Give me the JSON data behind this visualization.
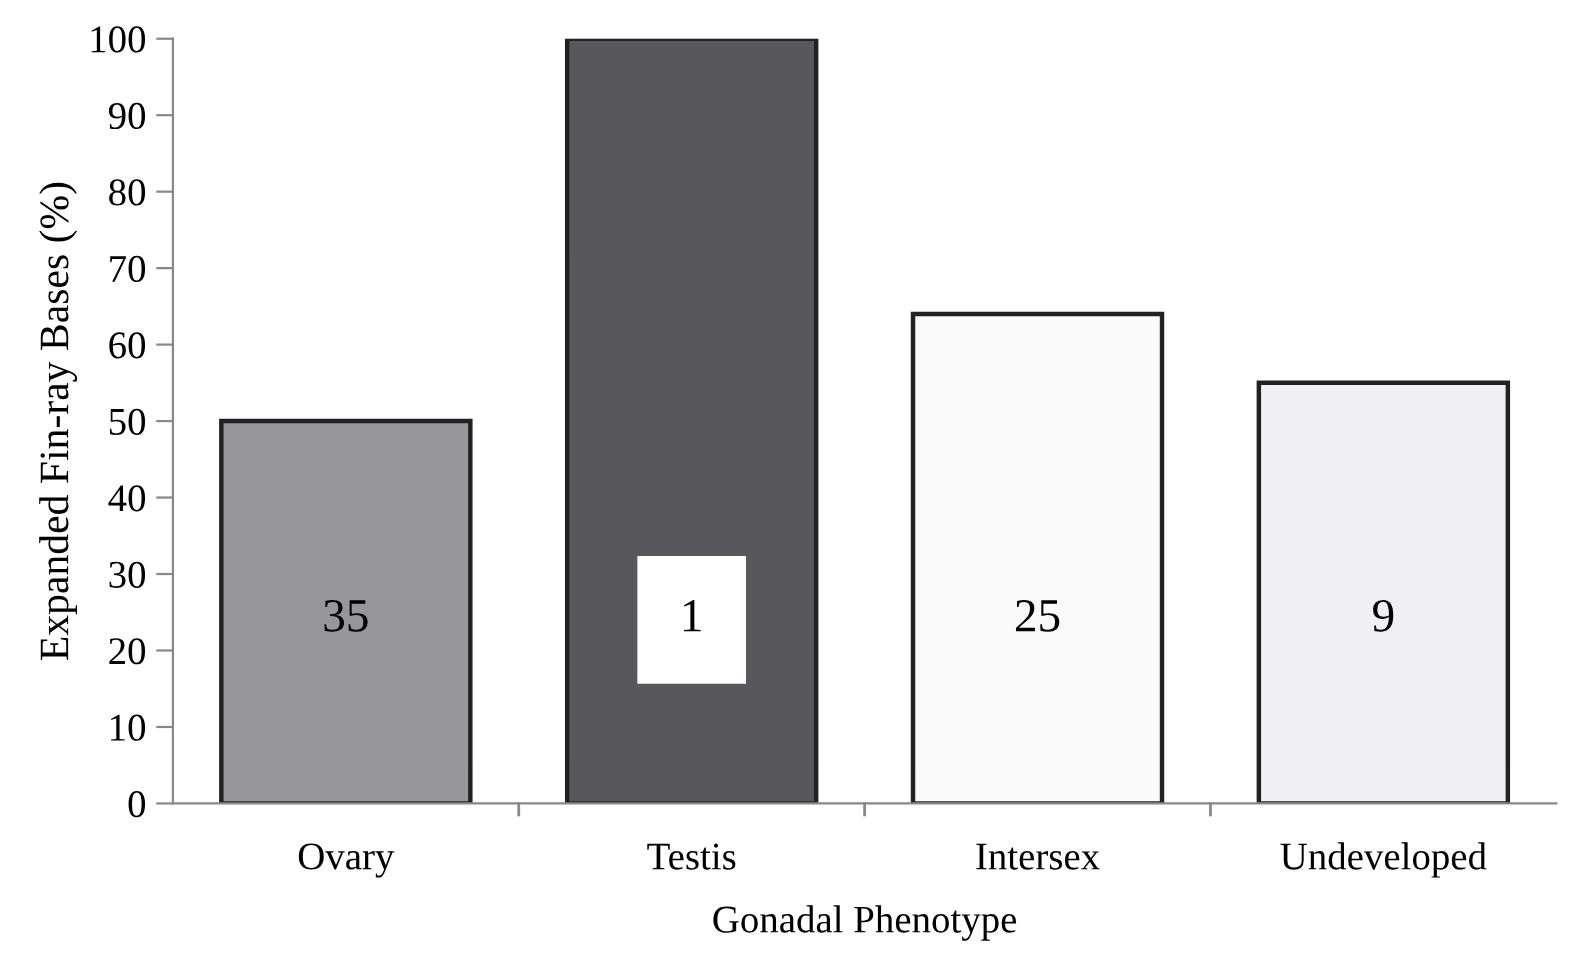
{
  "chart_data": {
    "type": "bar",
    "xlabel": "Gonadal Phenotype",
    "ylabel": "Expanded Fin-ray Bases (%)",
    "categories": [
      "Ovary",
      "Testis",
      "Intersex",
      "Undeveloped"
    ],
    "values": [
      50,
      100,
      64,
      55
    ],
    "colors": [
      "#97979b",
      "#58585c",
      "#fafafa",
      "#f0f0f2"
    ],
    "ylim": [
      0,
      100
    ],
    "yticks": [
      0,
      10,
      20,
      30,
      40,
      50,
      60,
      70,
      80,
      90,
      100
    ],
    "grid": false,
    "annotations": [
      "35",
      "1",
      "25",
      "9"
    ]
  }
}
